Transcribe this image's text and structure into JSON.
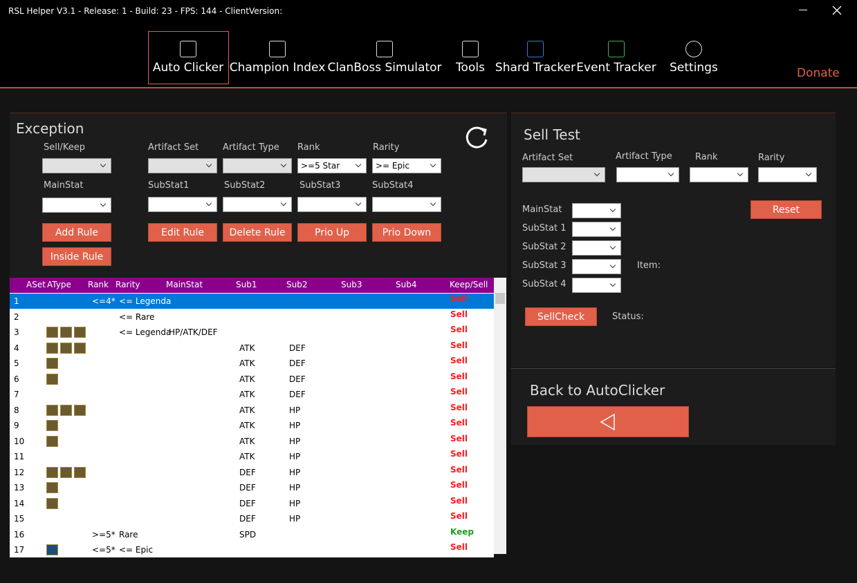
{
  "window": {
    "title": "RSL Helper V3.1 - Release: 1 - Build: 23 - FPS: 144 - ClientVersion:"
  },
  "nav": {
    "items": [
      "Auto Clicker",
      "Champion Index",
      "ClanBoss Simulator",
      "Tools",
      "Shard Tracker",
      "Event Tracker",
      "Settings"
    ],
    "donate": "Donate"
  },
  "exception": {
    "title": "Exception",
    "labels": [
      "Sell/Keep",
      "Artifact Set",
      "Artifact Type",
      "Rank",
      "Rarity",
      "MainStat",
      "SubStat1",
      "SubStat2",
      "SubStat3",
      "SubStat4"
    ],
    "rank_value": ">=5 Star",
    "rarity_value": ">= Epic",
    "buttons": [
      "Add Rule",
      "Inside Rule",
      "Edit Rule",
      "Delete Rule",
      "Prio Up",
      "Prio Down"
    ]
  },
  "table": {
    "columns": [
      "ASet",
      "AType",
      "Rank",
      "Rarity",
      "MainStat",
      "Sub1",
      "Sub2",
      "Sub3",
      "Sub4",
      "Keep/Sell"
    ],
    "rows": [
      {
        "no": 1,
        "rank": "<=4*",
        "rarity": "<= Legenda",
        "action": "Sell",
        "color": "#ff1a1a"
      },
      {
        "no": 2,
        "rarity": "<= Rare",
        "action": "Sell",
        "color": "#ff1a1a"
      },
      {
        "no": 3,
        "rarity": "<= Legenda",
        "main": "HP/ATK/DEF",
        "action": "Sell",
        "color": "#ff1a1a"
      },
      {
        "no": 4,
        "sub1": "ATK",
        "sub2": "DEF",
        "action": "Sell",
        "color": "#ff1a1a"
      },
      {
        "no": 5,
        "sub1": "ATK",
        "sub2": "DEF",
        "action": "Sell",
        "color": "#ff1a1a"
      },
      {
        "no": 6,
        "sub1": "ATK",
        "sub2": "DEF",
        "action": "Sell",
        "color": "#ff1a1a"
      },
      {
        "no": 7,
        "sub1": "ATK",
        "sub2": "DEF",
        "action": "Sell",
        "color": "#ff1a1a"
      },
      {
        "no": 8,
        "sub1": "ATK",
        "sub2": "HP",
        "action": "Sell",
        "color": "#ff1a1a"
      },
      {
        "no": 9,
        "sub1": "ATK",
        "sub2": "HP",
        "action": "Sell",
        "color": "#ff1a1a"
      },
      {
        "no": 10,
        "sub1": "ATK",
        "sub2": "HP",
        "action": "Sell",
        "color": "#ff1a1a"
      },
      {
        "no": 11,
        "sub1": "ATK",
        "sub2": "HP",
        "action": "Sell",
        "color": "#ff1a1a"
      },
      {
        "no": 12,
        "sub1": "DEF",
        "sub2": "HP",
        "action": "Sell",
        "color": "#ff1a1a"
      },
      {
        "no": 13,
        "sub1": "DEF",
        "sub2": "HP",
        "action": "Sell",
        "color": "#ff1a1a"
      },
      {
        "no": 14,
        "sub1": "DEF",
        "sub2": "HP",
        "action": "Sell",
        "color": "#ff1a1a"
      },
      {
        "no": 15,
        "sub1": "DEF",
        "sub2": "HP",
        "action": "Sell",
        "color": "#ff1a1a"
      },
      {
        "no": 16,
        "rank": ">=5*",
        "rarity": "Rare",
        "sub1": "SPD",
        "action": "Keep",
        "color": "#1f9e1f"
      },
      {
        "no": 17,
        "rank": "<=5*",
        "rarity": "<= Epic",
        "action": "Sell",
        "color": "#ff1a1a"
      }
    ]
  },
  "sell_test": {
    "title": "Sell Test",
    "labels": [
      "Artifact Set",
      "Artifact Type",
      "Rank",
      "Rarity"
    ],
    "stat_labels": [
      "MainStat",
      "SubStat 1",
      "SubStat 2",
      "SubStat 3",
      "SubStat 4"
    ],
    "item": "Item:",
    "status": "Status:",
    "reset": "Reset",
    "sellcheck": "SellCheck"
  },
  "back": {
    "title": "Back to AutoClicker"
  }
}
